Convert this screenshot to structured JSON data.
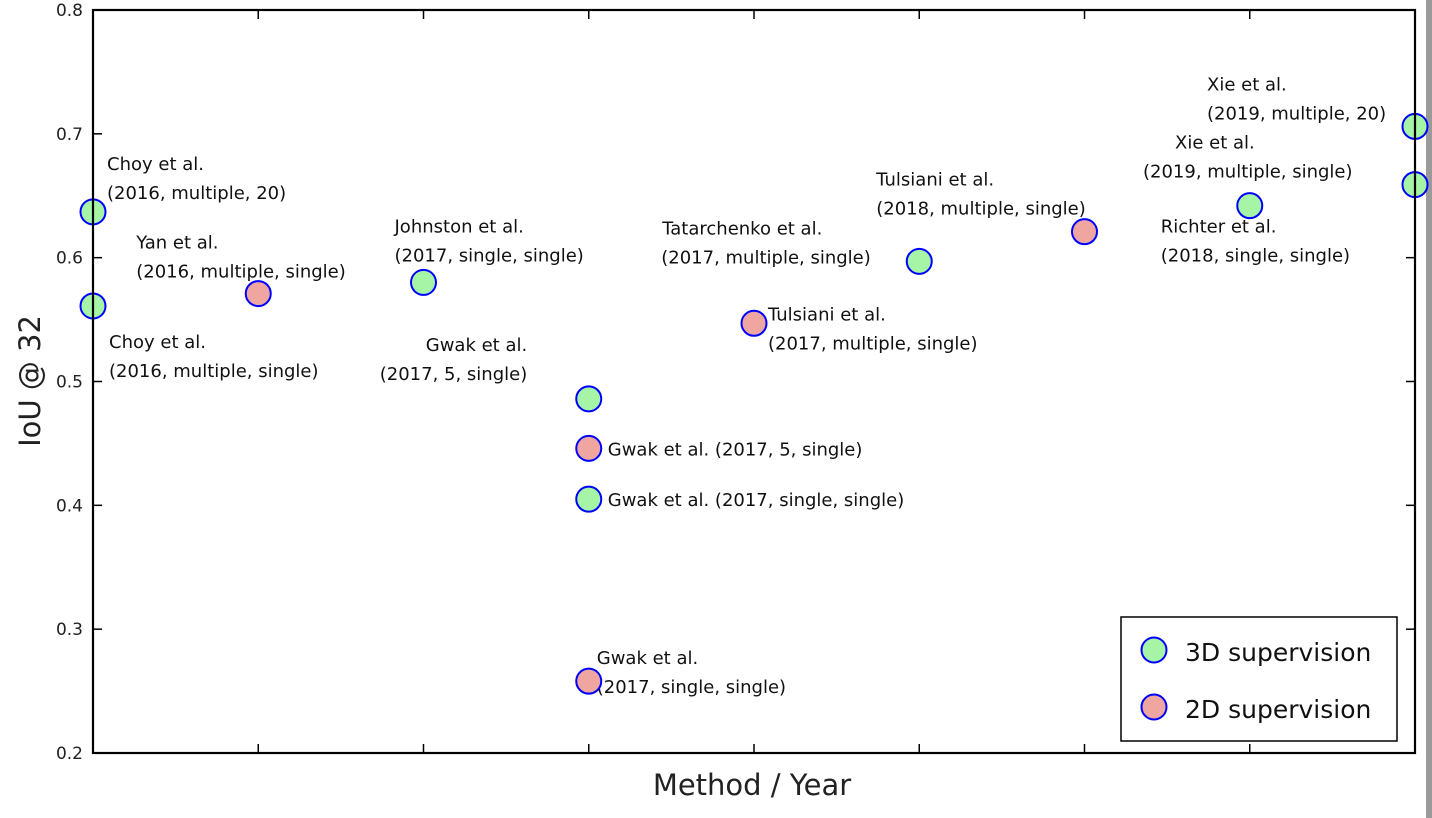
{
  "chart_data": {
    "type": "scatter",
    "xlabel": "Method / Year",
    "ylabel": "IoU @ 32",
    "ylim": [
      0.2,
      0.8
    ],
    "xlim": [
      0,
      8
    ],
    "y_ticks": [
      "0.2",
      "0.3",
      "0.4",
      "0.5",
      "0.6",
      "0.7",
      "0.8"
    ],
    "x_tick_count": 9,
    "grid": false,
    "legend_placement": "bottom-right",
    "colors": {
      "3D supervision": "#a6f5a6",
      "2D supervision": "#f0a6a0",
      "marker_edge": "#0000ff"
    },
    "series": [
      {
        "name": "3D supervision",
        "points": [
          {
            "x": 0,
            "y": 0.637
          },
          {
            "x": 0,
            "y": 0.561
          },
          {
            "x": 2,
            "y": 0.58
          },
          {
            "x": 3,
            "y": 0.486
          },
          {
            "x": 3,
            "y": 0.405
          },
          {
            "x": 5,
            "y": 0.597
          },
          {
            "x": 7,
            "y": 0.642
          },
          {
            "x": 8,
            "y": 0.706
          },
          {
            "x": 8,
            "y": 0.659
          }
        ]
      },
      {
        "name": "2D supervision",
        "points": [
          {
            "x": 1,
            "y": 0.571
          },
          {
            "x": 3,
            "y": 0.446
          },
          {
            "x": 3,
            "y": 0.258
          },
          {
            "x": 4,
            "y": 0.547
          },
          {
            "x": 6,
            "y": 0.621
          }
        ]
      }
    ],
    "annotations": [
      {
        "line1": "Choy et al.",
        "line2": "(2016, multiple, 20)",
        "x": 0,
        "y": 0.637,
        "dx": 14,
        "dy": -42,
        "indent": 0
      },
      {
        "line1": "Choy et al.",
        "line2": " (2016, multiple, single)",
        "x": 0,
        "y": 0.561,
        "dx": 16,
        "dy": 42,
        "indent": 0
      },
      {
        "line1": "Yan et al.",
        "line2": " (2016, multiple, single)",
        "x": 1,
        "y": 0.571,
        "dx": -122,
        "dy": -45,
        "indent": 0
      },
      {
        "line1": "Johnston et al.",
        "line2": " (2017, single, single)",
        "x": 2,
        "y": 0.58,
        "dx": -29,
        "dy": -50,
        "indent": 0
      },
      {
        "line1": "Gwak et al.",
        "line2": "(2017, 5, single)",
        "x": 3,
        "y": 0.486,
        "dx": -163,
        "dy": -48,
        "indent": 46
      },
      {
        "line1": "Gwak et al. (2017, 5, single)",
        "line2": "",
        "x": 3,
        "y": 0.446,
        "dx": 19,
        "dy": 7,
        "indent": 0
      },
      {
        "line1": "Gwak et al. (2017, single, single)",
        "line2": "",
        "x": 3,
        "y": 0.405,
        "dx": 19,
        "dy": 7,
        "indent": 0
      },
      {
        "line1": "Gwak et al.",
        "line2": " (2017, single, single)",
        "x": 3,
        "y": 0.258,
        "dx": 8,
        "dy": -17,
        "indent": 0
      },
      {
        "line1": "Tatarchenko et al.",
        "line2": "(2017, multiple, single)",
        "x": 5,
        "y": 0.597,
        "dx": -257,
        "dy": -27,
        "indent": 1
      },
      {
        "line1": "Tulsiani et al.",
        "line2": " (2017, multiple, single)",
        "x": 4,
        "y": 0.547,
        "dx": 14,
        "dy": -3,
        "indent": 0
      },
      {
        "line1": "Tulsiani et al.",
        "line2": "(2018, multiple, single)",
        "x": 5,
        "y": 0.597,
        "dx": -43,
        "dy": -76,
        "indent": 0
      },
      {
        "line1": "Richter et al.",
        "line2": "(2018, single, single)",
        "x": 7,
        "y": 0.642,
        "dx": -89,
        "dy": 27,
        "indent": 0
      },
      {
        "line1": "Xie et al.",
        "line2": "(2019, multiple, single)",
        "x": 8,
        "y": 0.659,
        "dx": -240,
        "dy": -36,
        "indent": 32
      },
      {
        "line1": "Xie et al.",
        "line2": "(2019, multiple, 20)",
        "x": 8,
        "y": 0.706,
        "dx": -208,
        "dy": -36,
        "indent": 0
      }
    ],
    "legend": [
      {
        "label": "3D supervision",
        "series": "3D supervision"
      },
      {
        "label": "2D supervision",
        "series": "2D supervision"
      }
    ]
  }
}
